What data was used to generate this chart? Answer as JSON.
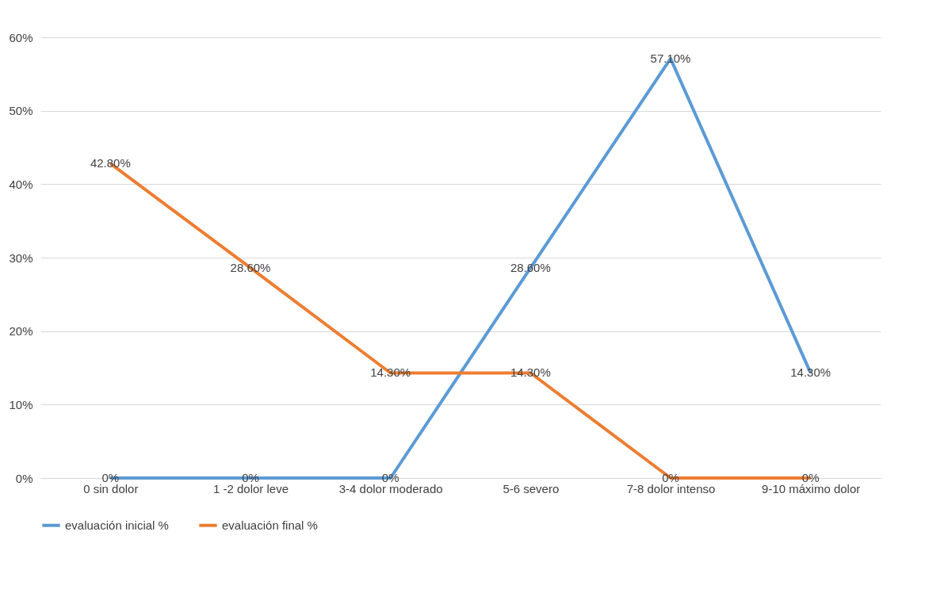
{
  "chart_data": {
    "type": "line",
    "categories": [
      "0 sin dolor",
      "1 -2 dolor leve",
      "3-4 dolor moderado",
      "5-6 severo",
      "7-8 dolor intenso",
      "9-10 máximo dolor"
    ],
    "series": [
      {
        "name": "evaluación inicial %",
        "color": "#5b9bd5",
        "values": [
          0,
          0,
          0,
          28.6,
          57.1,
          14.3
        ],
        "value_labels": [
          "0%",
          "0%",
          "0%",
          "28.60%",
          "57.10%",
          "14.30%"
        ]
      },
      {
        "name": "evaluación final %",
        "color": "#ed7d31",
        "values": [
          42.8,
          28.6,
          14.3,
          14.3,
          0,
          0
        ],
        "value_labels": [
          "42.80%",
          "28.60%",
          "14.30%",
          "14.30%",
          "0%",
          "0%"
        ]
      }
    ],
    "ylim": [
      0,
      60
    ],
    "yticks": [
      {
        "value": 0,
        "label": "0%"
      },
      {
        "value": 10,
        "label": "10%"
      },
      {
        "value": 20,
        "label": "20%"
      },
      {
        "value": 30,
        "label": "30%"
      },
      {
        "value": 40,
        "label": "40%"
      },
      {
        "value": 50,
        "label": "50%"
      },
      {
        "value": 60,
        "label": "60%"
      }
    ],
    "grid": "y",
    "legend": "bottom",
    "marker": "none",
    "line_style": "solid"
  }
}
